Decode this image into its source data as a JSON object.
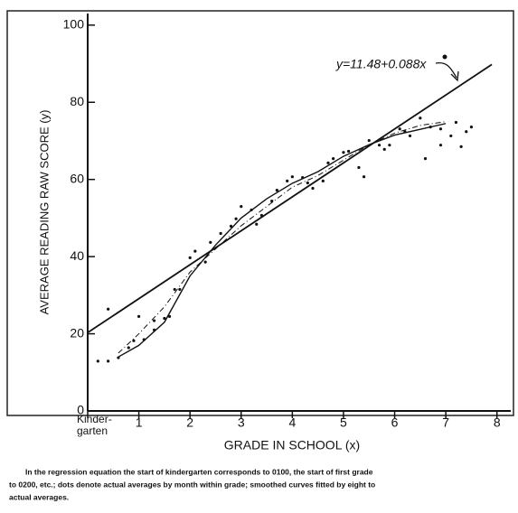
{
  "chart_data": {
    "type": "scatter",
    "y_label": "AVERAGE READING RAW SCORE (y)",
    "x_label": "GRADE IN SCHOOL (x)",
    "annotation": "y=11.48+0.088x",
    "footnote": [
      "In the regression equation the start of kindergarten corresponds to 0100, the start of first grade",
      "to 0200, etc.; dots denote actual averages by month within grade; smoothed curves fitted by eight to",
      "actual averages."
    ],
    "xlim": [
      0,
      8.27
    ],
    "ylim": [
      0,
      103
    ],
    "xticks": [
      {
        "value": 0,
        "label": "Kinder-\ngarten"
      },
      1,
      2,
      3,
      4,
      5,
      6,
      7,
      8
    ],
    "yticks": [
      0,
      20,
      40,
      60,
      80,
      100
    ],
    "color": "#111",
    "points": {
      "x": [
        0.4,
        0.2,
        0.4,
        0.6,
        0.8,
        0.9,
        1.0,
        1.1,
        1.3,
        1.3,
        1.5,
        1.6,
        1.7,
        1.8,
        2.0,
        2.1,
        2.3,
        2.4,
        2.6,
        2.8,
        2.9,
        3.0,
        3.2,
        3.3,
        3.4,
        3.6,
        3.7,
        3.9,
        4.0,
        4.2,
        4.3,
        4.4,
        4.6,
        4.7,
        4.8,
        5.0,
        5.1,
        5.3,
        5.4,
        5.5,
        5.7,
        5.8,
        5.9,
        6.1,
        6.2,
        6.3,
        6.5,
        6.6,
        6.7,
        6.9,
        6.9,
        7.1,
        7.2,
        7.3,
        7.4,
        7.5
      ],
      "y": [
        26.4,
        12.9,
        12.9,
        13.8,
        16.4,
        18.2,
        24.5,
        18.5,
        21.0,
        23.4,
        24.0,
        24.5,
        31.5,
        31.5,
        39.7,
        41.4,
        38.6,
        43.7,
        46.0,
        47.9,
        49.8,
        53.0,
        52.1,
        48.4,
        50.7,
        54.4,
        57.2,
        59.6,
        60.7,
        60.5,
        59.1,
        57.7,
        59.6,
        64.3,
        65.4,
        67.0,
        67.3,
        63.1,
        60.7,
        70.1,
        68.9,
        67.8,
        68.9,
        73.1,
        72.4,
        71.3,
        75.9,
        65.4,
        73.6,
        73.1,
        68.9,
        71.3,
        74.8,
        68.5,
        72.4,
        73.6
      ]
    },
    "regression": {
      "x": [
        0,
        7.9
      ],
      "y": [
        20.3,
        89.8
      ]
    },
    "smoothed": [
      {
        "x": [
          0.6,
          1,
          1.5,
          2,
          2.5,
          3,
          3.5,
          4,
          4.5,
          5,
          5.5,
          6,
          6.5,
          7
        ],
        "y": [
          14,
          17,
          23,
          35,
          43,
          50,
          55,
          59,
          62,
          66,
          69,
          71.5,
          73,
          74.5
        ],
        "dash": "none"
      },
      {
        "x": [
          0.6,
          1,
          1.5,
          2,
          2.5,
          3,
          3.5,
          4,
          4.5,
          5,
          5.5,
          6,
          6.5,
          7
        ],
        "y": [
          15,
          20,
          27,
          36,
          42,
          48,
          53,
          58,
          61,
          65,
          69,
          72,
          74,
          75
        ],
        "dash": "6 3 1 3"
      }
    ]
  }
}
